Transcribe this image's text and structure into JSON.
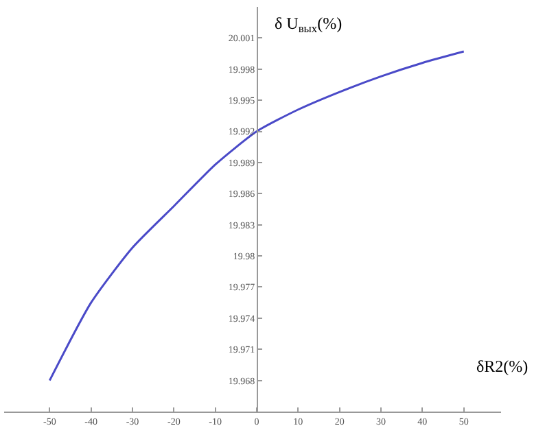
{
  "chart_data": {
    "type": "line",
    "xlabel": "δR2(%)",
    "ylabel": "δ U$_{вых}$(%)",
    "x": [
      -50,
      -40,
      -30,
      -20,
      -10,
      0,
      10,
      20,
      30,
      40,
      50
    ],
    "series": [
      {
        "color": "#4a4ac8",
        "values": [
          19.968,
          19.9755,
          19.9808,
          19.9848,
          19.9888,
          19.992,
          19.9941,
          19.9958,
          19.9973,
          19.9986,
          19.9997
        ]
      }
    ],
    "xlim": [
      -61,
      59
    ],
    "xticks": [
      -50,
      -40,
      -30,
      -20,
      -10,
      0,
      10,
      20,
      30,
      40,
      50
    ],
    "ylim": [
      19.965,
      20.004
    ],
    "yticks": [
      19.968,
      19.971,
      19.974,
      19.977,
      19.98,
      19.983,
      19.986,
      19.989,
      19.992,
      19.995,
      19.998,
      20.001
    ],
    "grid": false,
    "marker": "none",
    "line_style": "solid"
  }
}
